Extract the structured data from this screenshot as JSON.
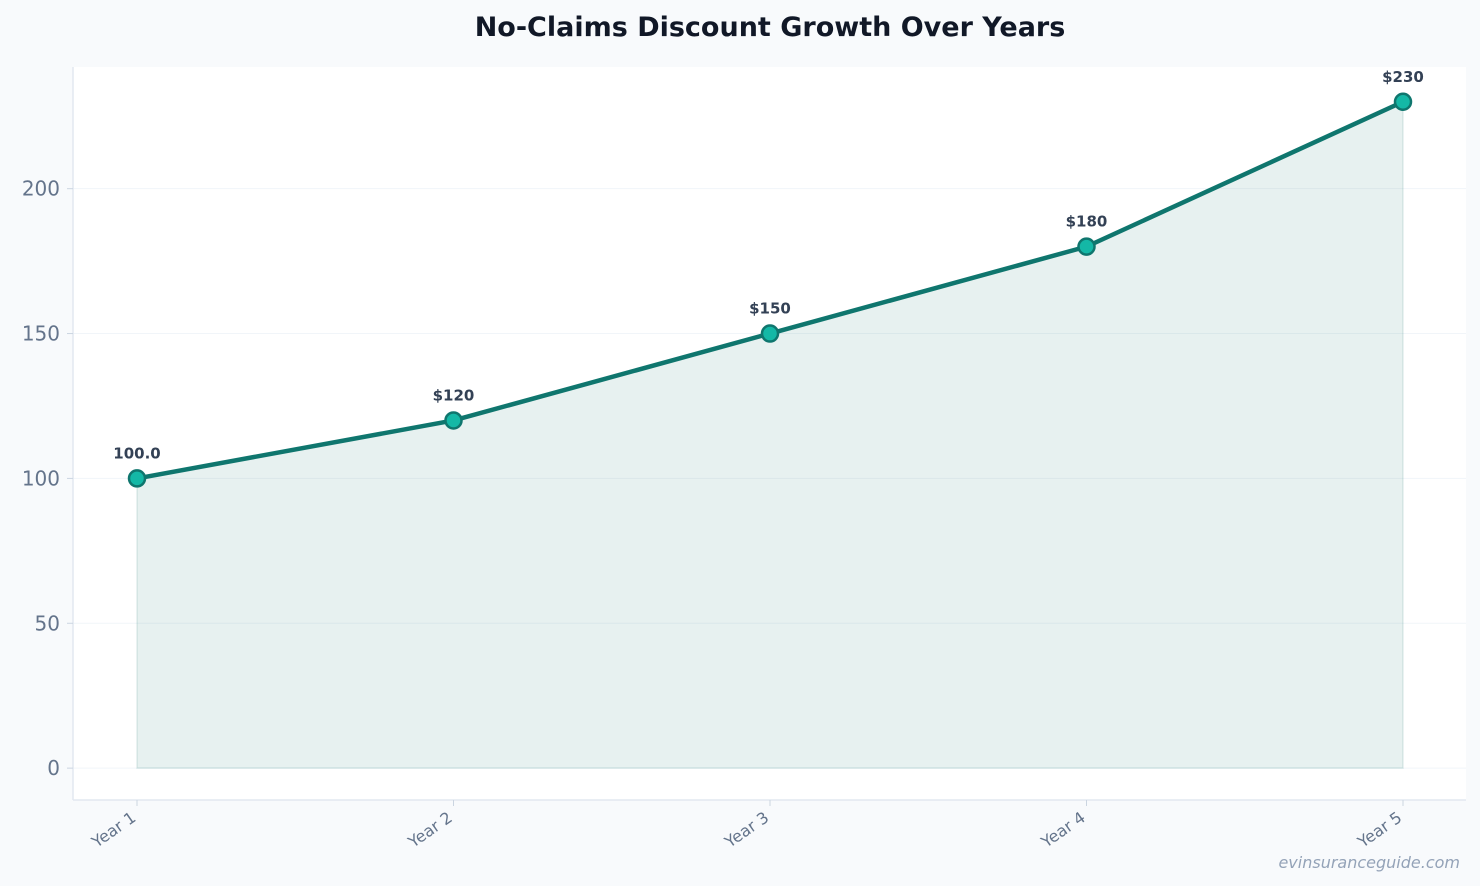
{
  "chart_data": {
    "type": "area",
    "title": "No-Claims Discount Growth Over Years",
    "xlabel": "",
    "ylabel": "",
    "categories": [
      "Year 1",
      "Year 2",
      "Year 3",
      "Year 4",
      "Year 5"
    ],
    "series": [
      {
        "values": [
          100,
          120,
          150,
          180,
          230
        ],
        "data_labels": [
          "100.0",
          "$120",
          "$150",
          "$180",
          "$230"
        ]
      }
    ],
    "yticks": [
      "0",
      "50",
      "100",
      "150",
      "200"
    ],
    "ylim": [
      -11,
      242
    ],
    "grid": true,
    "legend": "none"
  },
  "colors": {
    "line": "#0f766e",
    "marker_fill": "#14b8a6",
    "area_fill": "#0f766e",
    "plot_background": "#ffffff",
    "figure_background": "#f8fafc"
  },
  "watermark": "evinsuranceguide.com"
}
